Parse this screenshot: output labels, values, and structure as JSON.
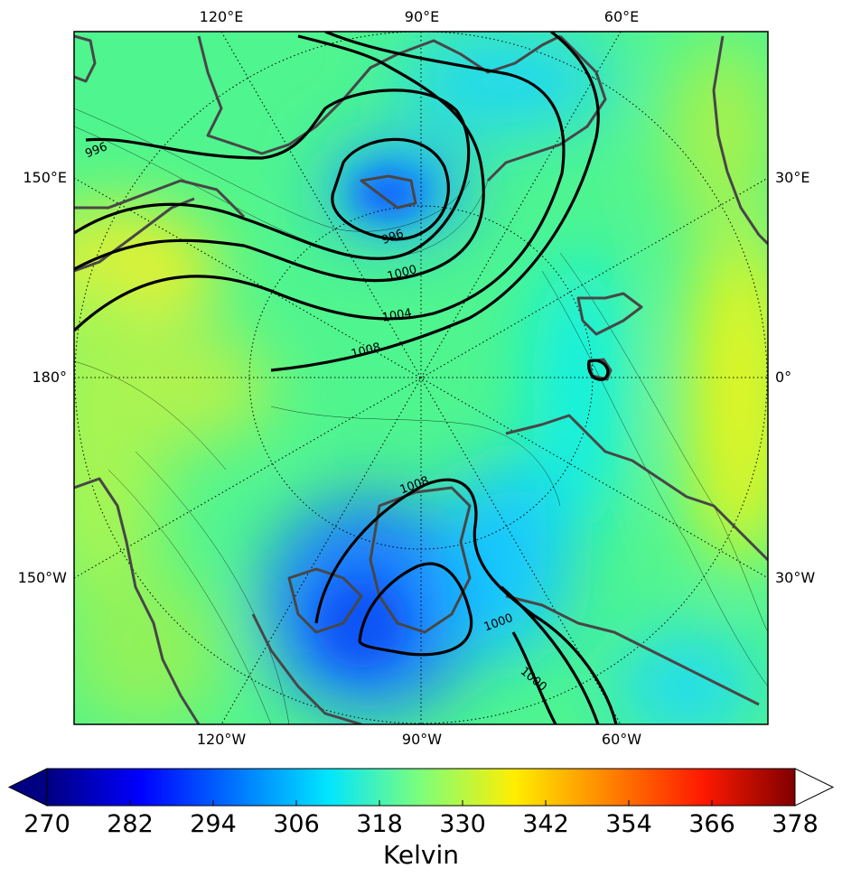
{
  "map": {
    "longitude_labels": {
      "top": [
        "120°E",
        "90°E",
        "60°E"
      ],
      "bottom": [
        "120°W",
        "90°W",
        "60°W"
      ],
      "left": [
        "150°E",
        "180°",
        "150°W"
      ],
      "right": [
        "30°E",
        "0°",
        "30°W"
      ]
    },
    "contour_labels": [
      996,
      996,
      1000,
      1004,
      1008,
      1008,
      1000,
      1000
    ]
  },
  "colorbar": {
    "label": "Kelvin",
    "colormap": "jet",
    "range": [
      270,
      378
    ],
    "ticks": [
      270,
      282,
      294,
      306,
      318,
      330,
      342,
      354,
      366,
      378
    ],
    "extend": "both"
  }
}
